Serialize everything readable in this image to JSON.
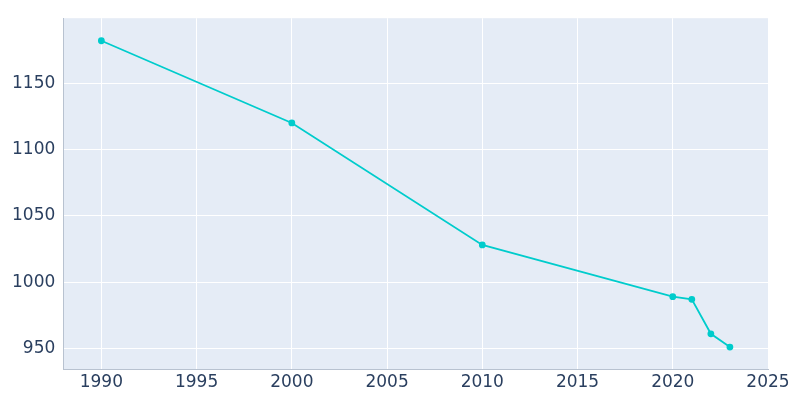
{
  "chart_data": {
    "type": "line",
    "x": [
      1990,
      2000,
      2010,
      2020,
      2021,
      2022,
      2023
    ],
    "values": [
      1182,
      1120,
      1028,
      989,
      987,
      961,
      951
    ],
    "color": "#00cccc",
    "marker": "circle",
    "xlim": [
      1988,
      2025
    ],
    "xticks": [
      1990,
      1995,
      2000,
      2005,
      2010,
      2015,
      2020,
      2025
    ],
    "ylim": [
      934,
      1199
    ],
    "yticks": [
      950,
      1000,
      1050,
      1100,
      1150
    ],
    "grid": true
  }
}
